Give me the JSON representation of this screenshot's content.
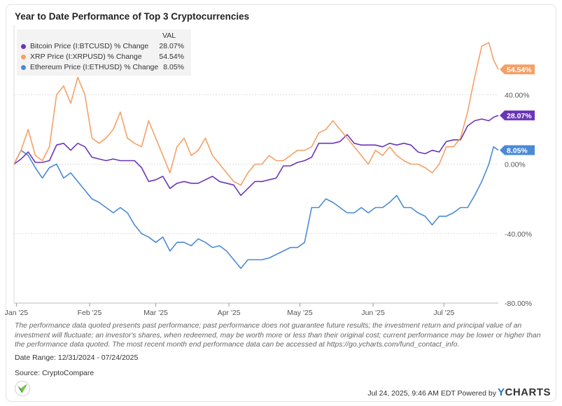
{
  "title": "Year to Date Performance of Top 3 Cryptocurrencies",
  "legend": {
    "header": "VAL",
    "items": [
      {
        "name": "Bitcoin Price (I:BTCUSD) % Change",
        "value": "28.07%",
        "color": "#6a35b8"
      },
      {
        "name": "XRP Price (I:XRPUSD) % Change",
        "value": "54.54%",
        "color": "#f5a066"
      },
      {
        "name": "Ethereum Price (I:ETHUSD) % Change",
        "value": "8.05%",
        "color": "#4a8ad6"
      }
    ]
  },
  "end_labels": [
    {
      "text": "54.54%",
      "color": "#f5a066"
    },
    {
      "text": "28.07%",
      "color": "#6a35b8"
    },
    {
      "text": "8.05%",
      "color": "#4a8ad6"
    }
  ],
  "disclaimer": "The performance data quoted presents past performance; past performance does not guarantee future results; the investment return and principal value of an investment will fluctuate; an investor's shares, when redeemed, may be worth more or less than their original cost; current performance may be lower or higher than the performance data quoted. The most recent month end performance data can be accessed at https://go.ycharts.com/fund_contact_info.",
  "date_range": "Date Range: 12/31/2024 - 07/24/2025",
  "source": "Source: CryptoCompare",
  "timestamp": "Jul 24, 2025, 9:46 AM EDT Powered by",
  "brand": {
    "first": "Y",
    "rest": "CHARTS"
  },
  "logo_icon": "ycharts-logo-icon",
  "chart_data": {
    "type": "line",
    "x": [
      "2024-12-31",
      "2025-01-03",
      "2025-01-06",
      "2025-01-09",
      "2025-01-12",
      "2025-01-15",
      "2025-01-18",
      "2025-01-21",
      "2025-01-24",
      "2025-01-27",
      "2025-01-30",
      "2025-02-02",
      "2025-02-05",
      "2025-02-08",
      "2025-02-11",
      "2025-02-14",
      "2025-02-17",
      "2025-02-20",
      "2025-02-23",
      "2025-02-26",
      "2025-03-01",
      "2025-03-04",
      "2025-03-07",
      "2025-03-10",
      "2025-03-13",
      "2025-03-16",
      "2025-03-19",
      "2025-03-22",
      "2025-03-25",
      "2025-03-28",
      "2025-03-31",
      "2025-04-03",
      "2025-04-06",
      "2025-04-09",
      "2025-04-12",
      "2025-04-15",
      "2025-04-18",
      "2025-04-21",
      "2025-04-24",
      "2025-04-27",
      "2025-04-30",
      "2025-05-03",
      "2025-05-06",
      "2025-05-09",
      "2025-05-12",
      "2025-05-15",
      "2025-05-18",
      "2025-05-21",
      "2025-05-24",
      "2025-05-27",
      "2025-05-30",
      "2025-06-02",
      "2025-06-05",
      "2025-06-08",
      "2025-06-11",
      "2025-06-14",
      "2025-06-17",
      "2025-06-20",
      "2025-06-23",
      "2025-06-26",
      "2025-06-29",
      "2025-07-02",
      "2025-07-05",
      "2025-07-08",
      "2025-07-11",
      "2025-07-14",
      "2025-07-17",
      "2025-07-20",
      "2025-07-22",
      "2025-07-24"
    ],
    "series": [
      {
        "name": "Bitcoin Price (I:BTCUSD) % Change",
        "color": "#6a35b8",
        "end_value": 28.07,
        "values": [
          0,
          3,
          7,
          1,
          1,
          2,
          11,
          12,
          8,
          12,
          10,
          4,
          3,
          2,
          3,
          2,
          2,
          2,
          -2,
          -10,
          -9,
          -7,
          -14,
          -11,
          -10,
          -11,
          -11,
          -9,
          -7,
          -10,
          -11,
          -12,
          -18,
          -14,
          -10,
          -10,
          -9,
          -8,
          -1,
          -1,
          1,
          2,
          4,
          12,
          12,
          12,
          13,
          17,
          12,
          11,
          11,
          11,
          10,
          12,
          11,
          12,
          11,
          7,
          6,
          8,
          7,
          13,
          14,
          14,
          22,
          25,
          26,
          25,
          27,
          28.07
        ]
      },
      {
        "name": "XRP Price (I:XRPUSD) % Change",
        "color": "#f5a066",
        "end_value": 54.54,
        "values": [
          0,
          8,
          20,
          5,
          2,
          10,
          40,
          45,
          35,
          50,
          40,
          15,
          12,
          15,
          20,
          30,
          15,
          12,
          10,
          25,
          15,
          5,
          -5,
          10,
          15,
          5,
          8,
          15,
          5,
          0,
          -5,
          -10,
          -12,
          -5,
          0,
          0,
          5,
          2,
          2,
          5,
          8,
          8,
          10,
          18,
          20,
          25,
          20,
          15,
          10,
          5,
          0,
          8,
          5,
          10,
          5,
          2,
          0,
          0,
          -2,
          -5,
          0,
          10,
          10,
          15,
          30,
          50,
          68,
          70,
          60,
          54.54
        ]
      },
      {
        "name": "Ethereum Price (I:ETHUSD) % Change",
        "color": "#4a8ad6",
        "end_value": 8.05,
        "values": [
          0,
          8,
          5,
          -2,
          -8,
          -2,
          0,
          -8,
          -5,
          -10,
          -15,
          -20,
          -22,
          -25,
          -28,
          -25,
          -28,
          -35,
          -40,
          -42,
          -45,
          -42,
          -50,
          -45,
          -45,
          -47,
          -43,
          -45,
          -48,
          -47,
          -50,
          -55,
          -60,
          -55,
          -55,
          -55,
          -54,
          -52,
          -50,
          -48,
          -48,
          -45,
          -25,
          -25,
          -20,
          -22,
          -25,
          -28,
          -28,
          -25,
          -28,
          -25,
          -25,
          -22,
          -18,
          -25,
          -25,
          -28,
          -30,
          -35,
          -30,
          -30,
          -28,
          -25,
          -25,
          -18,
          -10,
          0,
          10,
          8.05
        ]
      }
    ],
    "x_ticks": [
      {
        "date": "2025-01-01",
        "label": "Jan '25"
      },
      {
        "date": "2025-02-01",
        "label": "Feb '25"
      },
      {
        "date": "2025-03-01",
        "label": "Mar '25"
      },
      {
        "date": "2025-04-01",
        "label": "Apr '25"
      },
      {
        "date": "2025-05-01",
        "label": "May '25"
      },
      {
        "date": "2025-06-01",
        "label": "Jun '25"
      },
      {
        "date": "2025-07-01",
        "label": "Jul '25"
      }
    ],
    "y_ticks": [
      {
        "value": 40,
        "label": "40.00%"
      },
      {
        "value": 0,
        "label": "0.00%"
      },
      {
        "value": -40,
        "label": "-40.00%"
      },
      {
        "value": -80,
        "label": "-80.00%"
      }
    ],
    "xlim": [
      "2024-12-31",
      "2025-07-24"
    ],
    "ylim": [
      -80,
      80
    ],
    "grid": "horizontal-dashed",
    "legend": "top-left"
  }
}
